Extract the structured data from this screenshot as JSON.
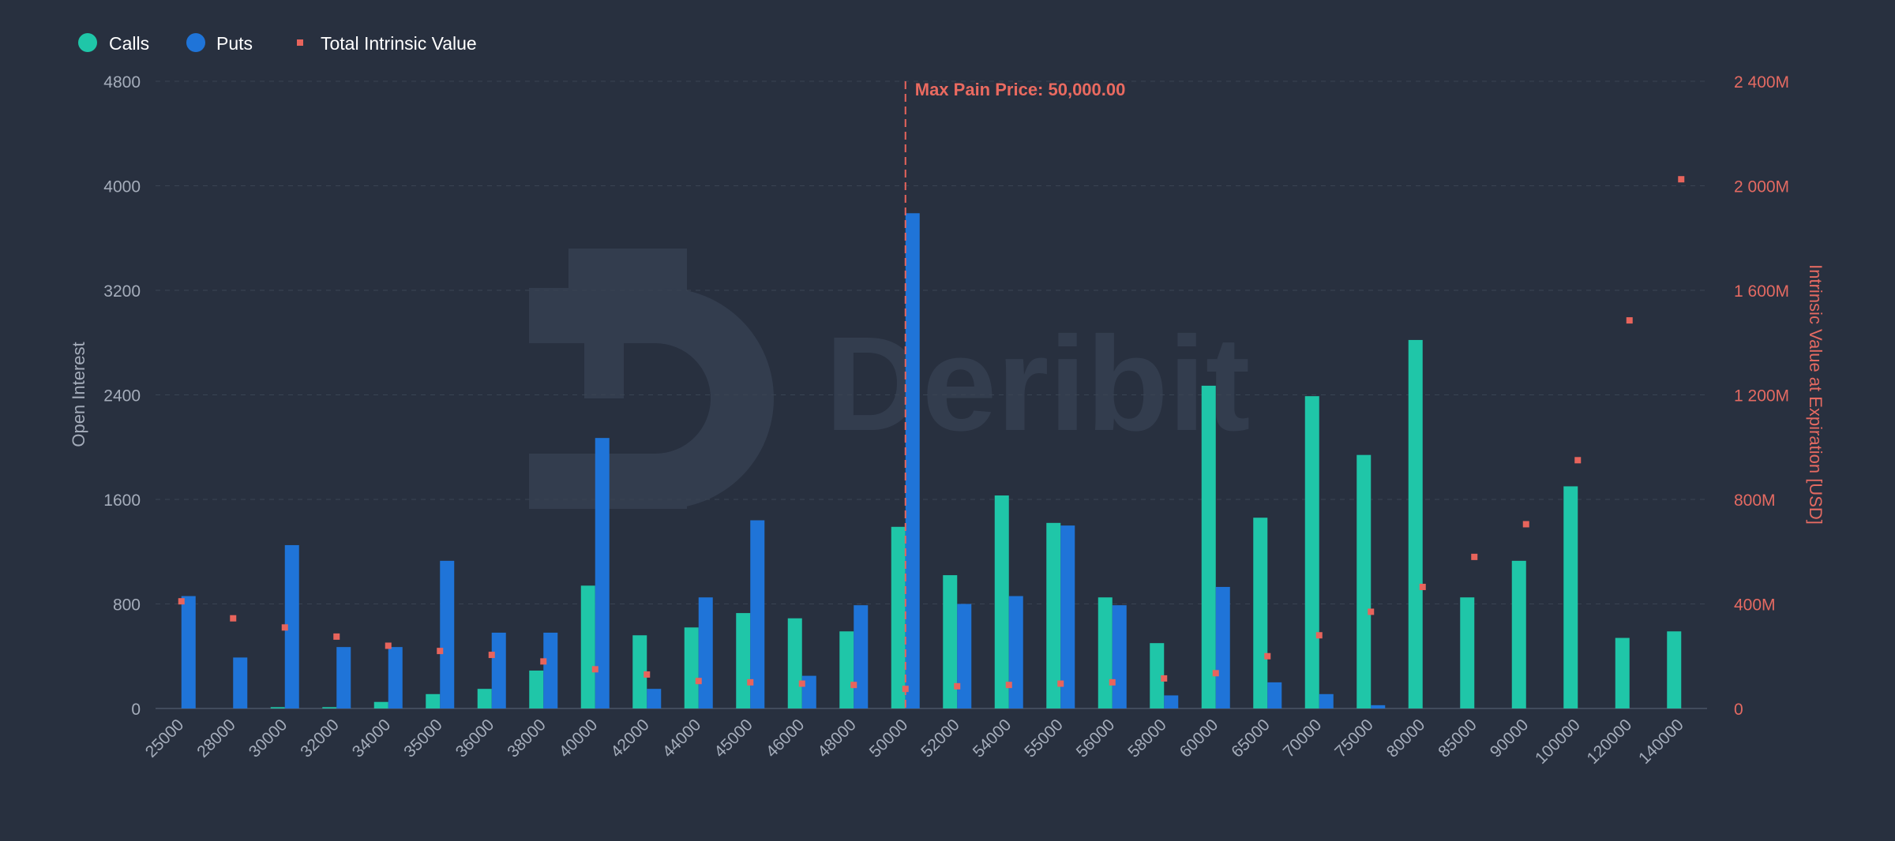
{
  "watermark": {
    "brand": "Deribit"
  },
  "legend": {
    "calls": "Calls",
    "puts": "Puts",
    "total": "Total Intrinsic Value"
  },
  "colors": {
    "calls": "#1fc6a8",
    "puts": "#1f74d8",
    "intrinsic": "#e8645c",
    "grid": "#3a4453",
    "axis_line": "#4a5466"
  },
  "annotation": {
    "max_pain_label": "Max Pain Price: 50,000.00",
    "max_pain_strike": "50000"
  },
  "chart_data": {
    "type": "bar",
    "ylabel": "Open Interest",
    "y2label": "Intrinsic Value at Expiration [USD]",
    "ylim": [
      0,
      4800
    ],
    "y2lim": [
      0,
      2400
    ],
    "yticks": [
      "0",
      "800",
      "1600",
      "2400",
      "3200",
      "4000",
      "4800"
    ],
    "y2ticks": [
      "0",
      "400M",
      "800M",
      "1 200M",
      "1 600M",
      "2 000M",
      "2 400M"
    ],
    "legend_position": "top-left",
    "grid": true,
    "categories": [
      "25000",
      "28000",
      "30000",
      "32000",
      "34000",
      "35000",
      "36000",
      "38000",
      "40000",
      "42000",
      "44000",
      "45000",
      "46000",
      "48000",
      "50000",
      "52000",
      "54000",
      "55000",
      "56000",
      "58000",
      "60000",
      "65000",
      "70000",
      "75000",
      "80000",
      "85000",
      "90000",
      "100000",
      "120000",
      "140000"
    ],
    "series": [
      {
        "name": "Calls",
        "axis": "left",
        "type": "bar",
        "values": [
          0,
          0,
          10,
          10,
          50,
          110,
          150,
          290,
          940,
          560,
          620,
          730,
          690,
          590,
          1390,
          1020,
          1630,
          1420,
          850,
          500,
          2470,
          1460,
          2390,
          1940,
          2820,
          850,
          1130,
          1700,
          540,
          590
        ]
      },
      {
        "name": "Puts",
        "axis": "left",
        "type": "bar",
        "values": [
          860,
          390,
          1250,
          470,
          470,
          1130,
          580,
          580,
          2070,
          150,
          850,
          1440,
          250,
          790,
          3790,
          800,
          860,
          1400,
          790,
          100,
          930,
          200,
          110,
          25,
          0,
          0,
          0,
          0,
          0,
          0
        ]
      },
      {
        "name": "Total Intrinsic Value",
        "axis": "right",
        "type": "scatter",
        "values": [
          410,
          345,
          310,
          275,
          240,
          220,
          205,
          180,
          150,
          130,
          105,
          100,
          95,
          90,
          75,
          85,
          90,
          95,
          100,
          115,
          135,
          200,
          280,
          370,
          465,
          580,
          705,
          950,
          1485,
          2025
        ]
      }
    ]
  }
}
